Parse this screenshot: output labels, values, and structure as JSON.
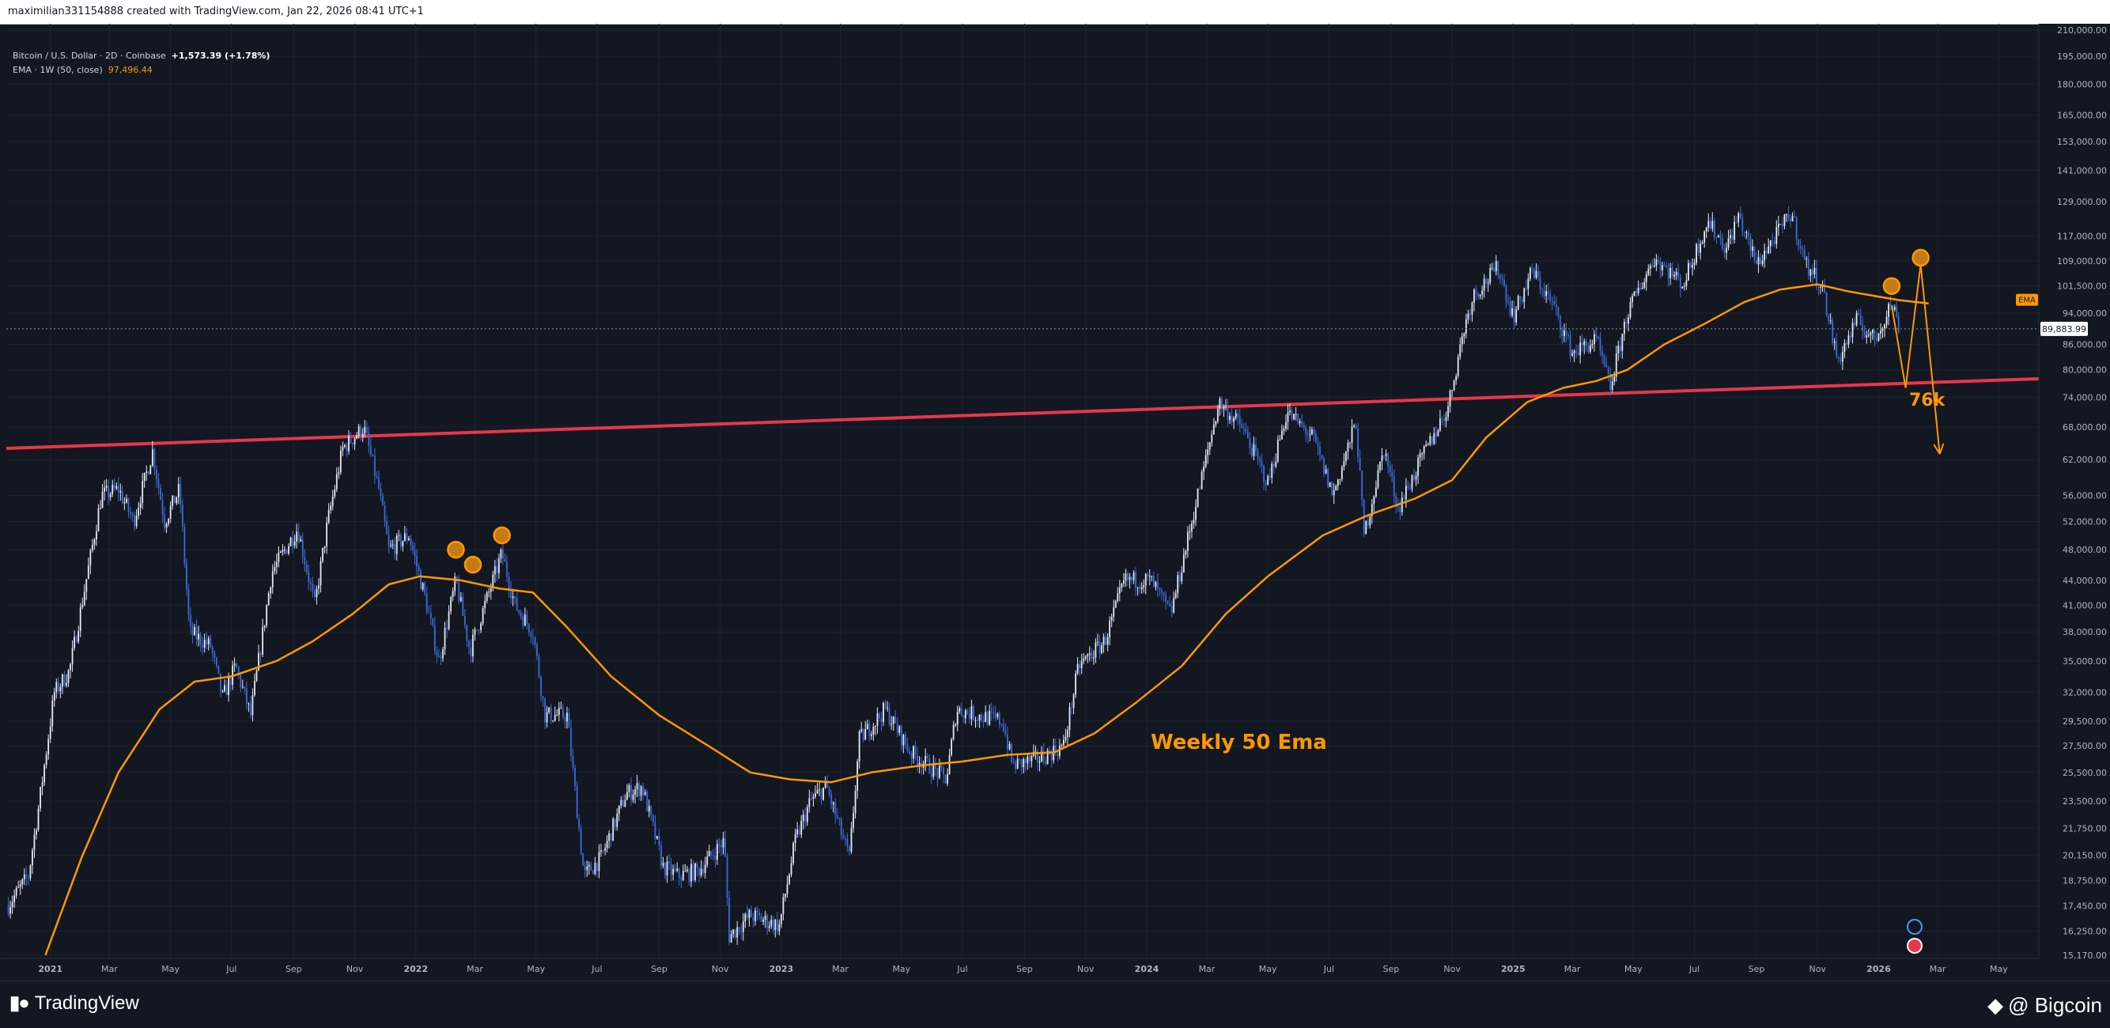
{
  "header": {
    "created_by": "maximilian331154888 created with TradingView.com, Jan 22, 2026 08:41 UTC+1"
  },
  "legend": {
    "symbol": "Bitcoin / U.S. Dollar · 2D · Coinbase",
    "change": "+1,573.39 (+1.78%)",
    "ema_label": "EMA · 1W (50, close)",
    "ema_value": "97,496.44"
  },
  "chart_data": {
    "type": "candlestick",
    "y_scale": "log",
    "ylim": [
      15170,
      210000
    ],
    "y_ticks": [
      "210,000.00",
      "195,000.00",
      "180,000.00",
      "165,000.00",
      "153,000.00",
      "141,000.00",
      "129,000.00",
      "117,000.00",
      "109,000.00",
      "101,500.00",
      "94,000.00",
      "86,000.00",
      "80,000.00",
      "74,000.00",
      "68,000.00",
      "62,000.00",
      "56,000.00",
      "52,000.00",
      "48,000.00",
      "44,000.00",
      "41,000.00",
      "38,000.00",
      "35,000.00",
      "32,000.00",
      "29,500.00",
      "27,500.00",
      "25,500.00",
      "23,500.00",
      "21,750.00",
      "20,150.00",
      "18,750.00",
      "17,450.00",
      "16,250.00",
      "15,170.00"
    ],
    "x_ticks": [
      "2021",
      "Mar",
      "May",
      "Jul",
      "Sep",
      "Nov",
      "2022",
      "Mar",
      "May",
      "Jul",
      "Sep",
      "Nov",
      "2023",
      "Mar",
      "May",
      "Jul",
      "Sep",
      "Nov",
      "2024",
      "Mar",
      "May",
      "Jul",
      "Sep",
      "Nov",
      "2025",
      "Mar",
      "May",
      "Jul",
      "Sep",
      "Nov",
      "2026",
      "Mar",
      "May"
    ],
    "x_range": [
      "2020-11-18",
      "2026-06-10"
    ],
    "price_path": [
      [
        "2020-11-20",
        17500
      ],
      [
        "2020-12-10",
        19000
      ],
      [
        "2020-12-20",
        23000
      ],
      [
        "2021-01-05",
        32000
      ],
      [
        "2021-01-20",
        34000
      ],
      [
        "2021-02-10",
        47000
      ],
      [
        "2021-02-21",
        56000
      ],
      [
        "2021-03-10",
        57000
      ],
      [
        "2021-03-25",
        52000
      ],
      [
        "2021-04-13",
        63500
      ],
      [
        "2021-04-25",
        52000
      ],
      [
        "2021-05-10",
        57000
      ],
      [
        "2021-05-20",
        38000
      ],
      [
        "2021-06-10",
        36500
      ],
      [
        "2021-06-22",
        31500
      ],
      [
        "2021-07-05",
        34500
      ],
      [
        "2021-07-20",
        30000
      ],
      [
        "2021-08-10",
        45000
      ],
      [
        "2021-09-05",
        51000
      ],
      [
        "2021-09-22",
        41000
      ],
      [
        "2021-10-05",
        52000
      ],
      [
        "2021-10-20",
        64000
      ],
      [
        "2021-11-10",
        68000
      ],
      [
        "2021-11-25",
        57000
      ],
      [
        "2021-12-05",
        48000
      ],
      [
        "2021-12-25",
        50000
      ],
      [
        "2022-01-10",
        42000
      ],
      [
        "2022-01-24",
        35000
      ],
      [
        "2022-02-10",
        44000
      ],
      [
        "2022-02-24",
        36000
      ],
      [
        "2022-03-05",
        39000
      ],
      [
        "2022-03-28",
        47500
      ],
      [
        "2022-04-10",
        41000
      ],
      [
        "2022-04-28",
        38000
      ],
      [
        "2022-05-10",
        30000
      ],
      [
        "2022-06-01",
        30000
      ],
      [
        "2022-06-18",
        19000
      ],
      [
        "2022-07-05",
        20000
      ],
      [
        "2022-07-30",
        24000
      ],
      [
        "2022-08-15",
        24500
      ],
      [
        "2022-09-05",
        19500
      ],
      [
        "2022-09-20",
        19000
      ],
      [
        "2022-10-10",
        19300
      ],
      [
        "2022-11-05",
        21000
      ],
      [
        "2022-11-10",
        16000
      ],
      [
        "2022-12-01",
        17000
      ],
      [
        "2022-12-30",
        16500
      ],
      [
        "2023-01-15",
        21000
      ],
      [
        "2023-01-30",
        23500
      ],
      [
        "2023-02-15",
        24500
      ],
      [
        "2023-03-10",
        20000
      ],
      [
        "2023-03-20",
        28000
      ],
      [
        "2023-04-15",
        30500
      ],
      [
        "2023-05-10",
        27000
      ],
      [
        "2023-06-15",
        25000
      ],
      [
        "2023-06-25",
        30500
      ],
      [
        "2023-07-15",
        30000
      ],
      [
        "2023-08-10",
        29500
      ],
      [
        "2023-08-20",
        26000
      ],
      [
        "2023-09-15",
        26500
      ],
      [
        "2023-10-10",
        27500
      ],
      [
        "2023-10-25",
        34500
      ],
      [
        "2023-11-20",
        37000
      ],
      [
        "2023-12-10",
        44000
      ],
      [
        "2024-01-05",
        44000
      ],
      [
        "2024-01-25",
        40000
      ],
      [
        "2024-02-15",
        52000
      ],
      [
        "2024-03-13",
        73000
      ],
      [
        "2024-04-05",
        68000
      ],
      [
        "2024-05-01",
        58000
      ],
      [
        "2024-05-20",
        71000
      ],
      [
        "2024-06-15",
        66000
      ],
      [
        "2024-07-05",
        56000
      ],
      [
        "2024-07-28",
        69000
      ],
      [
        "2024-08-05",
        50000
      ],
      [
        "2024-08-25",
        64000
      ],
      [
        "2024-09-08",
        54000
      ],
      [
        "2024-10-01",
        62000
      ],
      [
        "2024-10-28",
        72000
      ],
      [
        "2024-11-12",
        89000
      ],
      [
        "2024-11-22",
        99000
      ],
      [
        "2024-12-17",
        107000
      ],
      [
        "2025-01-01",
        93000
      ],
      [
        "2025-01-20",
        106000
      ],
      [
        "2025-02-10",
        96000
      ],
      [
        "2025-03-01",
        84000
      ],
      [
        "2025-03-25",
        87000
      ],
      [
        "2025-04-08",
        76000
      ],
      [
        "2025-04-25",
        94000
      ],
      [
        "2025-05-22",
        110000
      ],
      [
        "2025-06-20",
        102000
      ],
      [
        "2025-07-14",
        122000
      ],
      [
        "2025-08-02",
        113000
      ],
      [
        "2025-08-14",
        124000
      ],
      [
        "2025-09-01",
        108000
      ],
      [
        "2025-10-06",
        125000
      ],
      [
        "2025-10-20",
        108000
      ],
      [
        "2025-11-05",
        102000
      ],
      [
        "2025-11-21",
        82000
      ],
      [
        "2025-12-10",
        92000
      ],
      [
        "2025-12-28",
        87000
      ],
      [
        "2026-01-14",
        97000
      ],
      [
        "2026-01-22",
        89883.99
      ]
    ],
    "ema_path": [
      [
        "2020-12-27",
        15170
      ],
      [
        "2021-02-01",
        20000
      ],
      [
        "2021-03-10",
        25500
      ],
      [
        "2021-04-20",
        30500
      ],
      [
        "2021-05-25",
        33000
      ],
      [
        "2021-07-01",
        33500
      ],
      [
        "2021-08-15",
        35000
      ],
      [
        "2021-09-20",
        37000
      ],
      [
        "2021-10-30",
        40000
      ],
      [
        "2021-12-05",
        43500
      ],
      [
        "2022-01-05",
        44500
      ],
      [
        "2022-02-15",
        44000
      ],
      [
        "2022-03-25",
        43000
      ],
      [
        "2022-04-28",
        42500
      ],
      [
        "2022-06-01",
        38500
      ],
      [
        "2022-07-15",
        33500
      ],
      [
        "2022-09-01",
        30000
      ],
      [
        "2022-10-20",
        27500
      ],
      [
        "2022-12-01",
        25500
      ],
      [
        "2023-01-10",
        25000
      ],
      [
        "2023-02-20",
        24800
      ],
      [
        "2023-04-01",
        25500
      ],
      [
        "2023-05-20",
        26000
      ],
      [
        "2023-07-01",
        26300
      ],
      [
        "2023-08-15",
        26800
      ],
      [
        "2023-10-01",
        27000
      ],
      [
        "2023-11-10",
        28500
      ],
      [
        "2023-12-20",
        31000
      ],
      [
        "2024-02-05",
        34500
      ],
      [
        "2024-03-20",
        40000
      ],
      [
        "2024-05-01",
        44500
      ],
      [
        "2024-06-25",
        50000
      ],
      [
        "2024-08-10",
        53000
      ],
      [
        "2024-09-25",
        55500
      ],
      [
        "2024-11-01",
        58500
      ],
      [
        "2024-12-05",
        66000
      ],
      [
        "2025-01-15",
        73000
      ],
      [
        "2025-02-20",
        76000
      ],
      [
        "2025-03-25",
        77500
      ],
      [
        "2025-04-25",
        80000
      ],
      [
        "2025-06-01",
        86000
      ],
      [
        "2025-07-10",
        91000
      ],
      [
        "2025-08-20",
        97000
      ],
      [
        "2025-09-25",
        100500
      ],
      [
        "2025-11-01",
        102000
      ],
      [
        "2025-12-01",
        100000
      ],
      [
        "2026-01-01",
        98500
      ],
      [
        "2026-01-22",
        97496.44
      ],
      [
        "2026-02-20",
        96600
      ]
    ],
    "resistance_line": [
      [
        "2020-11-18",
        64000
      ],
      [
        "2026-06-10",
        78000
      ]
    ],
    "projection_path": [
      [
        "2026-01-14",
        96000
      ],
      [
        "2026-01-28",
        76000
      ],
      [
        "2026-02-12",
        108000
      ],
      [
        "2026-03-03",
        63000
      ]
    ],
    "circles": [
      [
        "2022-02-10",
        48000
      ],
      [
        "2022-02-27",
        46000
      ],
      [
        "2022-03-28",
        50000
      ],
      [
        "2026-01-14",
        101500
      ],
      [
        "2026-02-12",
        110000
      ]
    ],
    "price_colors": {
      "up": "#e6eaf5",
      "down": "#3d6bd8"
    },
    "ema_color": "#ff9800",
    "resistance_color": "#e8364a",
    "current_price": 89883.99,
    "current_price_label": "89,883.99",
    "ema_tag_label": "EMA",
    "annotations": {
      "ema_note": "Weekly 50 Ema",
      "target": "76k"
    }
  },
  "footer": {
    "brand": "TradingView",
    "source": "@ Bigcoin"
  },
  "colors": {
    "background": "#131722",
    "grid": "#1e222d",
    "axis_text": "#b2b5be"
  }
}
